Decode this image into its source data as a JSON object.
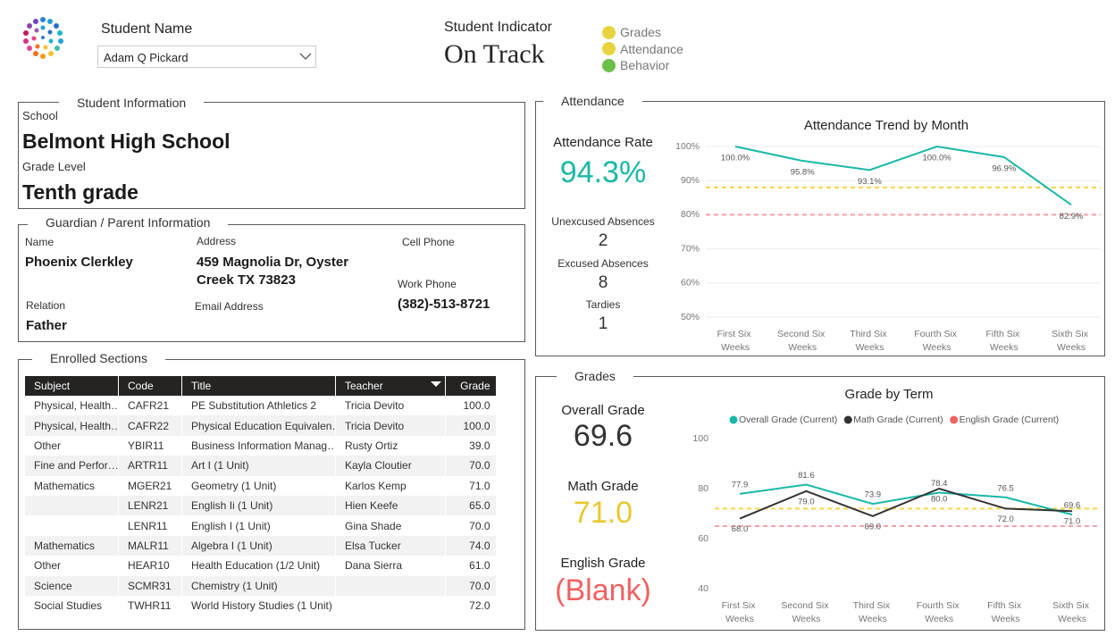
{
  "header": {
    "student_name_label": "Student Name",
    "student_name": "Adam Q Pickard",
    "indicator_label": "Student Indicator",
    "indicator": "On Track",
    "indicator_legend": [
      {
        "label": "Grades",
        "color": "#e8d33f"
      },
      {
        "label": "Attendance",
        "color": "#e8d33f"
      },
      {
        "label": "Behavior",
        "color": "#6cc04a"
      }
    ]
  },
  "student_information": {
    "title": "Student Information",
    "school_label": "School",
    "school": "Belmont High School",
    "grade_label": "Grade Level",
    "grade": "Tenth grade"
  },
  "guardian": {
    "title": "Guardian / Parent Information",
    "name_label": "Name",
    "name": "Phoenix Clerkley",
    "address_label": "Address",
    "address": "459 Magnolia Dr, Oyster Creek TX 73823",
    "cell_phone_label": "Cell Phone",
    "work_phone_label": "Work Phone",
    "work_phone": "(382)-513-8721",
    "relation_label": "Relation",
    "relation": "Father",
    "email_label": "Email Address"
  },
  "enrolled_sections": {
    "title": "Enrolled Sections",
    "columns": [
      "Subject",
      "Code",
      "Title",
      "Teacher",
      "Grade"
    ],
    "rows": [
      [
        "Physical, Health…",
        "CAFR21",
        "PE Substitution Athletics 2",
        "Tricia Devito",
        "100.0"
      ],
      [
        "Physical, Health…",
        "CAFR22",
        "Physical Education Equivalen…",
        "Tricia Devito",
        "100.0"
      ],
      [
        "Other",
        "YBIR11",
        "Business Information Manag…",
        "Rusty Ortiz",
        "39.0"
      ],
      [
        "Fine and Perfor…",
        "ARTR11",
        "Art I (1 Unit)",
        "Kayla Cloutier",
        "70.0"
      ],
      [
        "Mathematics",
        "MGER21",
        "Geometry (1 Unit)",
        "Karlos Kemp",
        "71.0"
      ],
      [
        null,
        "LENR21",
        "English Ii (1 Unit)",
        "Hien Keefe",
        "65.0"
      ],
      [
        null,
        "LENR11",
        "English I (1 Unit)",
        "Gina Shade",
        "70.0"
      ],
      [
        "Mathematics",
        "MALR11",
        "Algebra I (1 Unit)",
        "Elsa Tucker",
        "74.0"
      ],
      [
        "Other",
        "HEAR10",
        "Health Education (1/2 Unit)",
        "Dana Sierra",
        "61.0"
      ],
      [
        "Science",
        "SCMR31",
        "Chemistry (1 Unit)",
        null,
        "70.0"
      ],
      [
        "Social Studies",
        "TWHR11",
        "World History Studies (1 Unit)",
        null,
        "72.0"
      ]
    ]
  },
  "attendance": {
    "title": "Attendance",
    "rate_label": "Attendance Rate",
    "rate": "94.3%",
    "unexcused_label": "Unexcused Absences",
    "unexcused": 2,
    "excused_label": "Excused Absences",
    "excused": 8,
    "tardies_label": "Tardies",
    "tardies": 1
  },
  "grades": {
    "title": "Grades",
    "overall_label": "Overall Grade",
    "overall": 69.6,
    "math_label": "Math Grade",
    "math": "71.0",
    "english_label": "English Grade",
    "english": "(Blank)"
  },
  "chart_data": [
    {
      "type": "line",
      "title": "Attendance Trend by Month",
      "categories": [
        "First Six Weeks",
        "Second Six Weeks",
        "Third Six Weeks",
        "Fourth Six Weeks",
        "Fifth Six Weeks",
        "Sixth Six Weeks"
      ],
      "values": [
        100,
        95.8,
        93.1,
        100,
        96.9,
        82.9
      ],
      "value_labels": [
        "100.0%",
        "95.8%",
        "93.1%",
        "100.0%",
        "96.9%",
        "82.9%"
      ],
      "color": "#1ab8a8",
      "ylim": [
        50,
        100
      ],
      "yticks": [
        {
          "value": 50,
          "label": "50%"
        },
        {
          "value": 60,
          "label": "60%"
        },
        {
          "value": 70,
          "label": "70%"
        },
        {
          "value": 80,
          "label": "80%"
        },
        {
          "value": 90,
          "label": "90%"
        },
        {
          "value": 100,
          "label": "100%"
        }
      ],
      "grid": true,
      "reference_lines": [
        {
          "value": 88,
          "color": "#f5d547"
        },
        {
          "value": 80,
          "color": "#f4a3a3"
        }
      ]
    },
    {
      "type": "line",
      "title": "Grade by Term",
      "categories": [
        "First Six Weeks",
        "Second Six Weeks",
        "Third Six Weeks",
        "Fourth Six Weeks",
        "Fifth Six Weeks",
        "Sixth Six Weeks"
      ],
      "series": [
        {
          "name": "Overall Grade (Current)",
          "color": "#1ab8a8",
          "values": [
            77.9,
            81.6,
            73.9,
            78.4,
            76.5,
            69.6
          ]
        },
        {
          "name": "Math Grade (Current)",
          "color": "#333333",
          "values": [
            68,
            79,
            69,
            80,
            72,
            71
          ],
          "value_labels": [
            "68.0",
            "79.0",
            "69.0",
            "80.0",
            "72.0",
            "71.0"
          ]
        },
        {
          "name": "English Grade (Current)",
          "color": "#f06262",
          "values": [
            null,
            null,
            null,
            null,
            null,
            null
          ]
        }
      ],
      "ylim": [
        40,
        100
      ],
      "yticks": [
        40,
        60,
        80,
        100
      ],
      "grid": false,
      "legend": "top",
      "reference_lines": [
        {
          "value": 72,
          "color": "#f5d547"
        },
        {
          "value": 65,
          "color": "#f4a3a3"
        }
      ]
    }
  ]
}
